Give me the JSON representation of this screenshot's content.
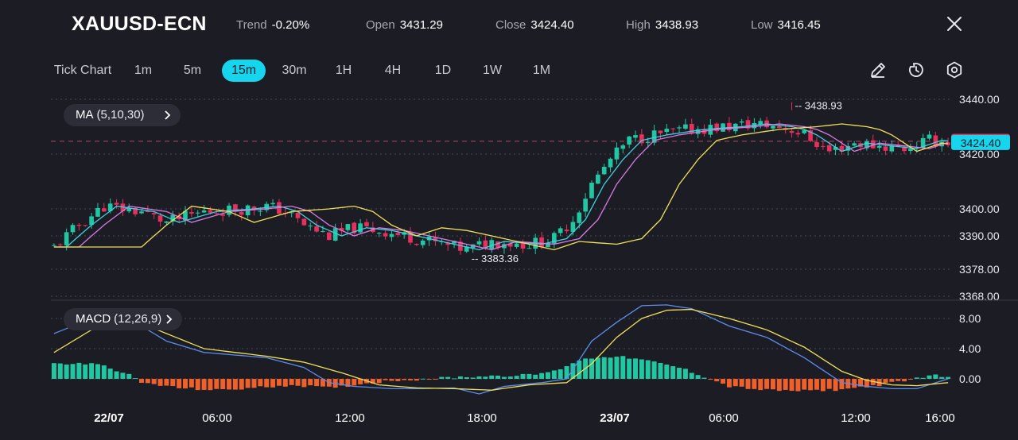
{
  "header": {
    "symbol": "XAUUSD-ECN",
    "stats": [
      {
        "label": "Trend",
        "value": "-0.20%"
      },
      {
        "label": "Open",
        "value": "3431.29"
      },
      {
        "label": "Close",
        "value": "3424.40"
      },
      {
        "label": "High",
        "value": "3438.93"
      },
      {
        "label": "Low",
        "value": "3416.45"
      }
    ]
  },
  "timeframes": [
    "Tick Chart",
    "1m",
    "5m",
    "15m",
    "30m",
    "1H",
    "4H",
    "1D",
    "1W",
    "1M"
  ],
  "active_timeframe": "15m",
  "tools": [
    "pencil-icon",
    "timer-icon",
    "settings-icon"
  ],
  "indicators": {
    "ma": {
      "name": "MA",
      "params": "(5,10,30)"
    },
    "macd": {
      "name": "MACD",
      "params": "(12,26,9)"
    }
  },
  "colors": {
    "background": "#1c1c24",
    "up": "#21c7a3",
    "down": "#e6305d",
    "accent": "#16d6ee",
    "macd_line": "#5b8def",
    "signal_line": "#f0e05a",
    "ma5": "#3ed1e0",
    "ma10": "#d77be0",
    "ma30": "#f0e05a",
    "hist_pos": "#21c7a3",
    "hist_neg": "#f0602a"
  },
  "chart_data": [
    {
      "type": "candlestick",
      "title": "XAUUSD-ECN 15m",
      "y_ticks": [
        "3440.00",
        "3420.00",
        "3400.00",
        "3390.00",
        "3378.00",
        "3368.00"
      ],
      "ylim": [
        3368,
        3440
      ],
      "x_ticks": [
        "22/07",
        "06:00",
        "12:00",
        "18:00",
        "23/07",
        "06:00",
        "12:00",
        "16:00"
      ],
      "current_price": "3424.40",
      "bid_price": "3424.49",
      "high_marker": "3438.93",
      "low_marker": "3383.36",
      "price_path": [
        [
          0,
          3386
        ],
        [
          4,
          3394
        ],
        [
          8,
          3401
        ],
        [
          14,
          3399
        ],
        [
          18,
          3395
        ],
        [
          24,
          3399
        ],
        [
          30,
          3400
        ],
        [
          34,
          3401
        ],
        [
          37,
          3399
        ],
        [
          40,
          3394
        ],
        [
          44,
          3390
        ],
        [
          48,
          3393
        ],
        [
          52,
          3392
        ],
        [
          56,
          3390
        ],
        [
          62,
          3387
        ],
        [
          66,
          3385
        ],
        [
          70,
          3388
        ],
        [
          76,
          3387
        ],
        [
          80,
          3389
        ],
        [
          83,
          3396
        ],
        [
          86,
          3409
        ],
        [
          89,
          3418
        ],
        [
          92,
          3425
        ],
        [
          96,
          3427
        ],
        [
          102,
          3429
        ],
        [
          108,
          3430
        ],
        [
          112,
          3431
        ],
        [
          116,
          3430
        ],
        [
          118,
          3429
        ],
        [
          120,
          3427
        ],
        [
          124,
          3421
        ],
        [
          128,
          3424
        ],
        [
          132,
          3423
        ],
        [
          136,
          3422
        ],
        [
          140,
          3425
        ],
        [
          143,
          3424.4
        ]
      ],
      "ma_series": [
        {
          "name": "MA5",
          "lag": 2
        },
        {
          "name": "MA10",
          "lag": 4
        },
        {
          "name": "MA30",
          "lag": 14
        }
      ]
    },
    {
      "type": "macd",
      "y_ticks": [
        "8.00",
        "4.00",
        "0.00"
      ],
      "ylim": [
        -2,
        10
      ],
      "macd_path": [
        [
          0,
          6
        ],
        [
          6,
          8
        ],
        [
          12,
          8
        ],
        [
          18,
          5
        ],
        [
          24,
          3.5
        ],
        [
          34,
          2.8
        ],
        [
          40,
          1.5
        ],
        [
          44,
          -0.5
        ],
        [
          48,
          -1
        ],
        [
          54,
          -1.3
        ],
        [
          58,
          -1.3
        ],
        [
          64,
          -1.2
        ],
        [
          68,
          -2
        ],
        [
          72,
          -1
        ],
        [
          78,
          -0.5
        ],
        [
          82,
          0
        ],
        [
          86,
          5
        ],
        [
          90,
          7.5
        ],
        [
          94,
          9.7
        ],
        [
          98,
          9.8
        ],
        [
          102,
          9.3
        ],
        [
          108,
          7
        ],
        [
          114,
          5.5
        ],
        [
          120,
          2.8
        ],
        [
          126,
          -0.5
        ],
        [
          130,
          -1
        ],
        [
          134,
          -1.3
        ],
        [
          138,
          -1.3
        ],
        [
          143,
          0
        ]
      ],
      "signal_path": [
        [
          0,
          3.5
        ],
        [
          6,
          6.5
        ],
        [
          12,
          8
        ],
        [
          18,
          6
        ],
        [
          24,
          4
        ],
        [
          34,
          3
        ],
        [
          40,
          2.2
        ],
        [
          46,
          0.8
        ],
        [
          52,
          -0.8
        ],
        [
          58,
          -1.2
        ],
        [
          64,
          -1.3
        ],
        [
          70,
          -1.5
        ],
        [
          76,
          -0.8
        ],
        [
          82,
          -0.5
        ],
        [
          86,
          2
        ],
        [
          90,
          5.5
        ],
        [
          94,
          8
        ],
        [
          98,
          9.1
        ],
        [
          102,
          9.2
        ],
        [
          108,
          8
        ],
        [
          114,
          6.5
        ],
        [
          120,
          4.2
        ],
        [
          126,
          1
        ],
        [
          130,
          -0.2
        ],
        [
          134,
          -0.8
        ],
        [
          138,
          -0.9
        ],
        [
          143,
          -0.5
        ]
      ],
      "histogram_path": [
        [
          0,
          2
        ],
        [
          6,
          2
        ],
        [
          9,
          1.5
        ],
        [
          12,
          0.5
        ],
        [
          14,
          -0.5
        ],
        [
          20,
          -1.2
        ],
        [
          26,
          -1.5
        ],
        [
          32,
          -1.2
        ],
        [
          38,
          -0.8
        ],
        [
          44,
          -1.2
        ],
        [
          50,
          -0.6
        ],
        [
          54,
          -0.2
        ],
        [
          60,
          0
        ],
        [
          64,
          0.2
        ],
        [
          70,
          0.4
        ],
        [
          76,
          0.5
        ],
        [
          80,
          1
        ],
        [
          84,
          2.5
        ],
        [
          88,
          3
        ],
        [
          92,
          2.8
        ],
        [
          96,
          2.2
        ],
        [
          100,
          1.5
        ],
        [
          104,
          0.3
        ],
        [
          108,
          -1
        ],
        [
          114,
          -1.5
        ],
        [
          120,
          -1.6
        ],
        [
          126,
          -1.4
        ],
        [
          132,
          -0.8
        ],
        [
          136,
          -0.3
        ],
        [
          140,
          0.5
        ],
        [
          143,
          0.3
        ]
      ]
    }
  ]
}
